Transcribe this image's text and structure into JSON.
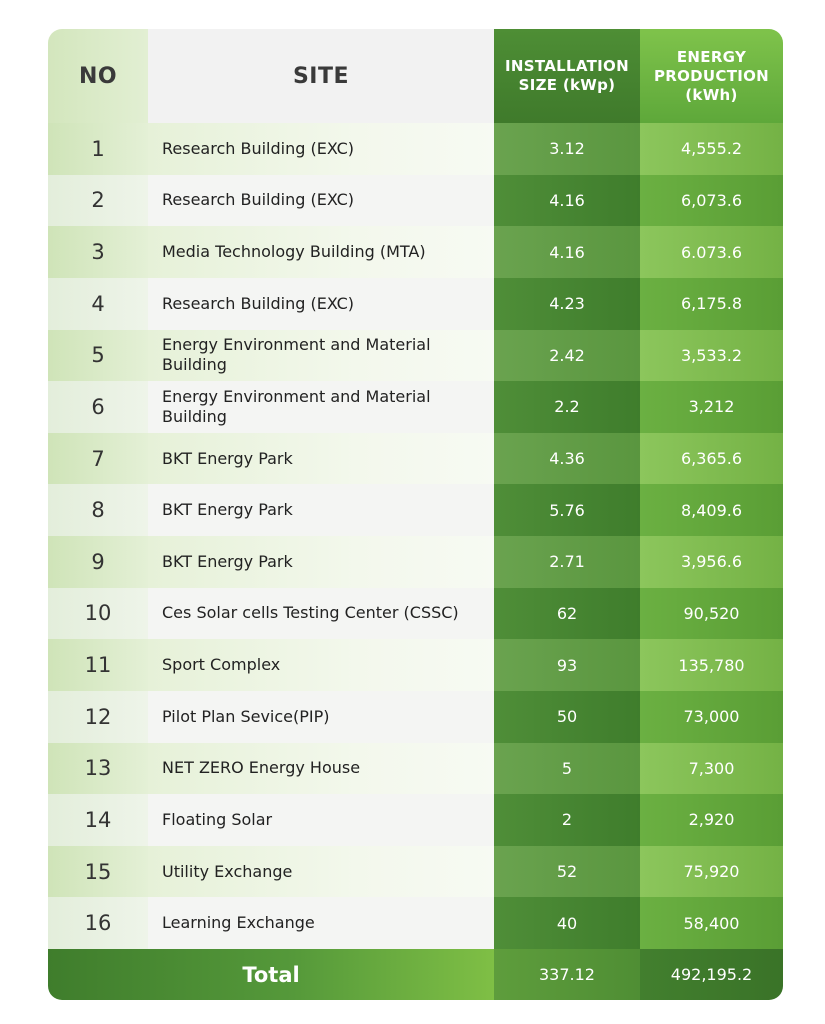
{
  "table": {
    "headers": {
      "no": "NO",
      "site": "SITE",
      "size": "INSTALLATION\nSIZE (kWp)",
      "production": "ENERGY\nPRODUCTION\n(kWh)"
    },
    "rows": [
      {
        "no": "1",
        "site": "Research Building (EXC)",
        "size": "3.12",
        "production": "4,555.2"
      },
      {
        "no": "2",
        "site": "Research Building (EXC)",
        "size": "4.16",
        "production": "6,073.6"
      },
      {
        "no": "3",
        "site": "Media Technology Building (MTA)",
        "size": "4.16",
        "production": "6.073.6"
      },
      {
        "no": "4",
        "site": "Research Building (EXC)",
        "size": "4.23",
        "production": "6,175.8"
      },
      {
        "no": "5",
        "site": "Energy Environment and Material Building",
        "size": "2.42",
        "production": "3,533.2"
      },
      {
        "no": "6",
        "site": "Energy Environment and Material Building",
        "size": "2.2",
        "production": "3,212"
      },
      {
        "no": "7",
        "site": "BKT Energy Park",
        "size": "4.36",
        "production": "6,365.6"
      },
      {
        "no": "8",
        "site": "BKT Energy Park",
        "size": "5.76",
        "production": "8,409.6"
      },
      {
        "no": "9",
        "site": "BKT Energy Park",
        "size": "2.71",
        "production": "3,956.6"
      },
      {
        "no": "10",
        "site": "Ces Solar cells Testing Center (CSSC)",
        "size": "62",
        "production": "90,520"
      },
      {
        "no": "11",
        "site": "Sport Complex",
        "size": "93",
        "production": "135,780"
      },
      {
        "no": "12",
        "site": "Pilot Plan Sevice(PIP)",
        "size": "50",
        "production": "73,000"
      },
      {
        "no": "13",
        "site": "NET ZERO Energy House",
        "size": "5",
        "production": "7,300"
      },
      {
        "no": "14",
        "site": "Floating Solar",
        "size": "2",
        "production": "2,920"
      },
      {
        "no": "15",
        "site": "Utility Exchange",
        "size": "52",
        "production": "75,920"
      },
      {
        "no": "16",
        "site": "Learning Exchange",
        "size": "40",
        "production": "58,400"
      }
    ],
    "total": {
      "label": "Total",
      "size": "337.12",
      "production": "492,195.2"
    }
  }
}
